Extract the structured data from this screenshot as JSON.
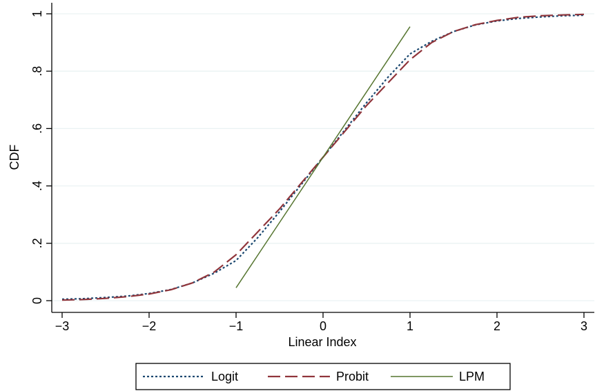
{
  "chart_data": {
    "type": "line",
    "title": "",
    "xlabel": "Linear Index",
    "ylabel": "CDF",
    "xlim": [
      -3,
      3
    ],
    "ylim": [
      0,
      1
    ],
    "x_ticks": [
      -3,
      -2,
      -1,
      0,
      1,
      2,
      3
    ],
    "x_tick_labels": [
      "−3",
      "−2",
      "−1",
      "0",
      "1",
      "2",
      "3"
    ],
    "y_ticks": [
      0,
      0.2,
      0.4,
      0.6,
      0.8,
      1
    ],
    "y_tick_labels": [
      "0",
      ".2",
      ".4",
      ".6",
      ".8",
      "1"
    ],
    "grid": true,
    "legend_position": "bottom",
    "series": [
      {
        "name": "Logit",
        "style": "dotted",
        "color": "#1a476f",
        "x": [
          -3,
          -2.75,
          -2.5,
          -2.25,
          -2,
          -1.75,
          -1.5,
          -1.25,
          -1,
          -0.75,
          -0.5,
          -0.25,
          0,
          0.25,
          0.5,
          0.75,
          1,
          1.25,
          1.5,
          1.75,
          2,
          2.25,
          2.5,
          2.75,
          3
        ],
        "y": [
          0.005,
          0.007,
          0.011,
          0.016,
          0.025,
          0.039,
          0.062,
          0.096,
          0.14,
          0.22,
          0.31,
          0.405,
          0.5,
          0.595,
          0.69,
          0.78,
          0.86,
          0.904,
          0.938,
          0.961,
          0.975,
          0.984,
          0.989,
          0.993,
          0.995
        ]
      },
      {
        "name": "Probit",
        "style": "dashed",
        "color": "#90353b",
        "x": [
          -3,
          -2.75,
          -2.5,
          -2.25,
          -2,
          -1.75,
          -1.5,
          -1.25,
          -1,
          -0.75,
          -0.5,
          -0.25,
          0,
          0.25,
          0.5,
          0.75,
          1,
          1.25,
          1.5,
          1.75,
          2,
          2.25,
          2.5,
          2.75,
          3
        ],
        "y": [
          0.002,
          0.004,
          0.008,
          0.014,
          0.023,
          0.038,
          0.062,
          0.1,
          0.16,
          0.24,
          0.32,
          0.41,
          0.5,
          0.59,
          0.68,
          0.76,
          0.84,
          0.9,
          0.938,
          0.962,
          0.977,
          0.988,
          0.993,
          0.996,
          0.998
        ]
      },
      {
        "name": "LPM",
        "style": "solid",
        "color": "#55752f",
        "x": [
          -1,
          1
        ],
        "y": [
          0.045,
          0.955
        ]
      }
    ]
  }
}
